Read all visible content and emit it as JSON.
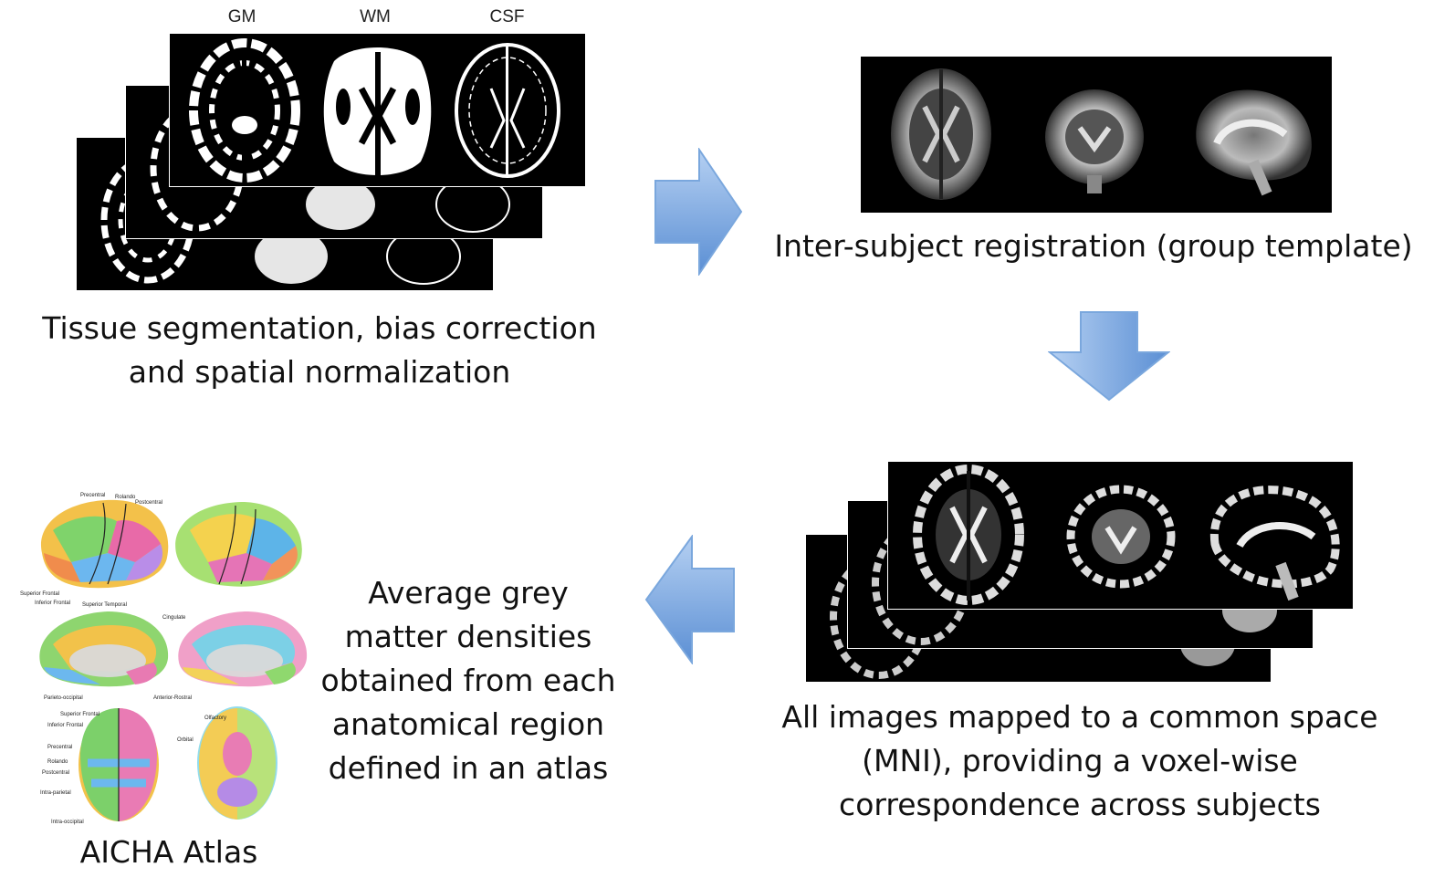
{
  "segmentation": {
    "headers": [
      "GM",
      "WM",
      "CSF"
    ],
    "caption_lines": [
      "Tissue segmentation, bias correction",
      "and spatial normalization"
    ]
  },
  "template": {
    "caption": "Inter-subject registration (group template)"
  },
  "mapped": {
    "caption_lines": [
      "All images mapped to a common space",
      "(MNI), providing a voxel-wise",
      "correspondence across subjects"
    ]
  },
  "atlas": {
    "caption": "AICHA Atlas",
    "labels": {
      "precentral": "Precentral",
      "rolando_top": "Rolando",
      "postcentral": "Postcentral",
      "superior_frontal_lat": "Superior Frontal",
      "inferior_frontal_lat": "Inferior Frontal",
      "superior_temporal": "Superior Temporal",
      "cingulate": "Cingulate",
      "parieto_occipital": "Parieto-occipital",
      "anterior_rostral": "Anterior-Rostral",
      "superior_frontal_top": "Superior Frontal",
      "inferior_frontal_top": "Inferior Frontal",
      "precentral_top": "Precentral",
      "rolando_left": "Rolando",
      "postcentral_left": "Postcentral",
      "intra_parietal": "Intra-parietal",
      "intra_occipital": "Intra-occipital",
      "olfactory": "Olfactory",
      "orbital": "Orbital"
    }
  },
  "average": {
    "caption_lines": [
      "Average grey",
      "matter densities",
      "obtained from each",
      "anatomical region",
      "defined in an atlas"
    ]
  },
  "colors": {
    "arrow_fill_top": "#a9c8ef",
    "arrow_fill_bottom": "#4f86cf",
    "arrow_stroke": "#7aa7dd"
  },
  "icons": [
    "arrow-right-icon",
    "arrow-down-icon",
    "arrow-left-icon"
  ]
}
